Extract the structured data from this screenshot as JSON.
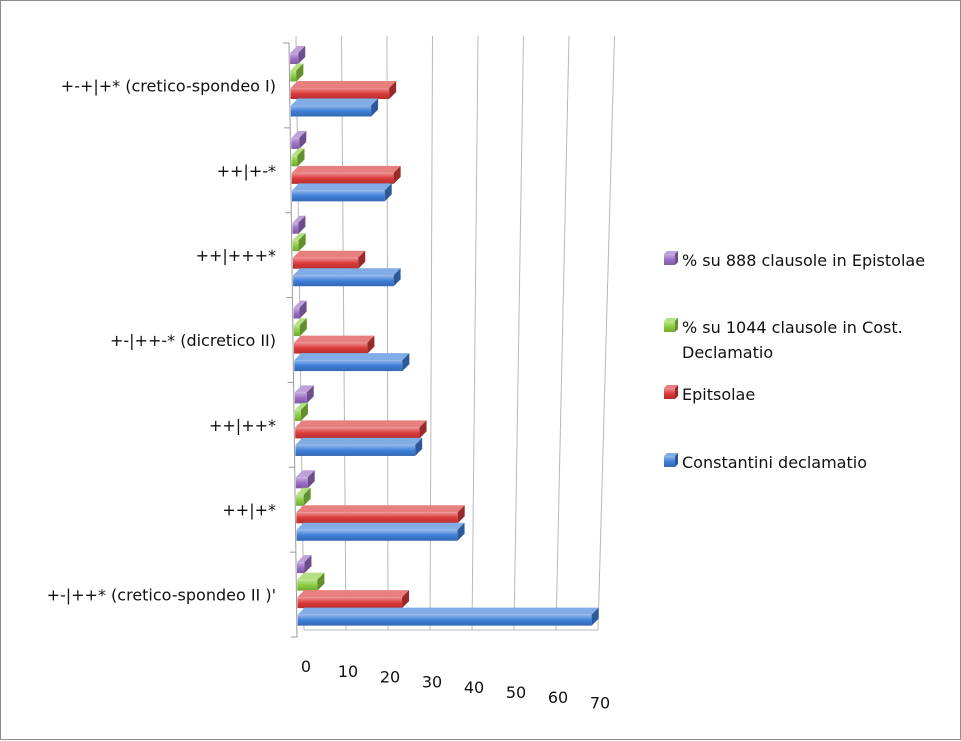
{
  "chart_data": {
    "type": "bar",
    "orientation": "horizontal",
    "style": "3d",
    "title": "",
    "xlabel": "",
    "ylabel": "",
    "xlim": [
      0,
      70
    ],
    "x_ticks": [
      "0",
      "10",
      "20",
      "30",
      "40",
      "50",
      "60",
      "70"
    ],
    "grid": true,
    "legend_position": "right",
    "categories": [
      "+-+|+* (cretico-spondeo I)",
      "++|+-*",
      "++|+++*",
      "+-|++-* (dicretico II)",
      "++|++*",
      "++|+*",
      "+-|++*  (cretico-spondeo II )'"
    ],
    "series": [
      {
        "name": "% su 888 clausole in Epistolae",
        "color": "#9b6fc6",
        "values": [
          2,
          2,
          0,
          0,
          3,
          3,
          2
        ]
      },
      {
        "name": "% su 1044 clausole in Cost. Declamatio",
        "color": "#8ccd3f",
        "values": [
          1,
          1,
          1,
          1,
          1,
          2,
          5
        ]
      },
      {
        "name": " Epitsolae",
        "color": "#dc3a3a",
        "values": [
          22,
          23,
          15,
          17,
          29,
          38,
          25
        ]
      },
      {
        "name": "Constantini declamatio",
        "color": "#3f7fd9",
        "values": [
          18,
          21,
          23,
          25,
          28,
          38,
          70
        ]
      }
    ],
    "legend": [
      {
        "lines": [
          "% su 888 clausole in Epistolae"
        ],
        "color": "#9b6fc6"
      },
      {
        "lines": [
          "% su 1044 clausole in Cost.",
          "Declamatio"
        ],
        "color": "#8ccd3f"
      },
      {
        "lines": [
          " Epitsolae"
        ],
        "color": "#dc3a3a"
      },
      {
        "lines": [
          "Constantini declamatio"
        ],
        "color": "#3f7fd9"
      }
    ]
  }
}
